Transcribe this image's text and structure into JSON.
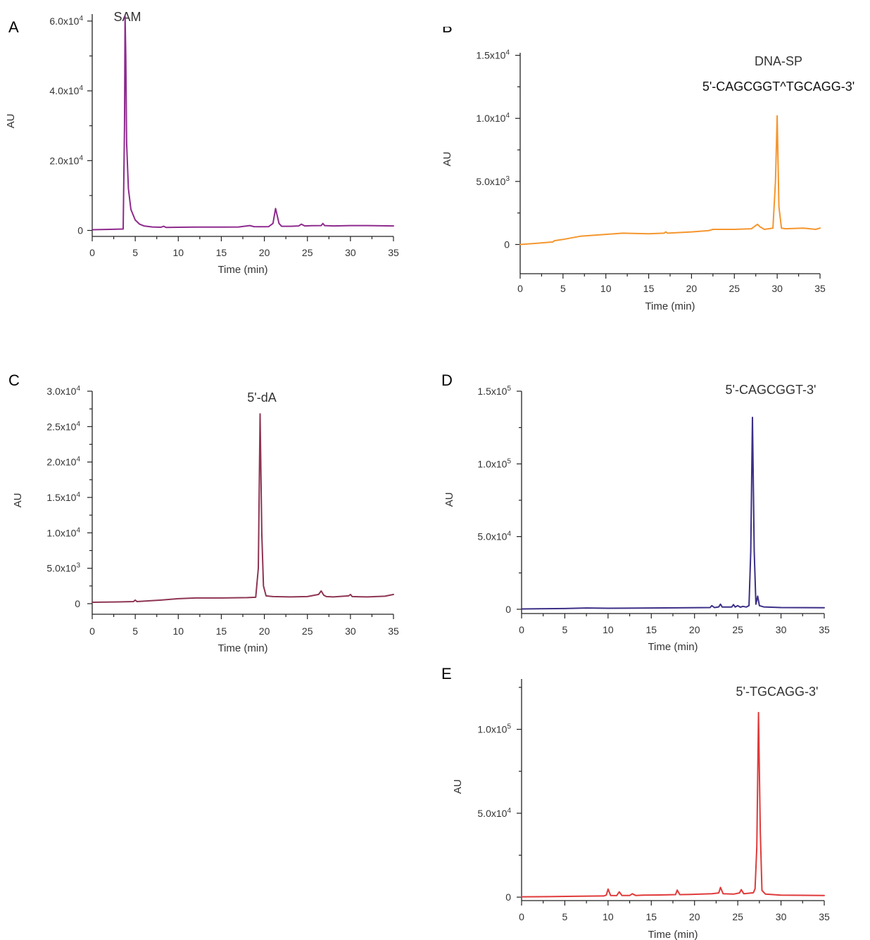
{
  "chart_data": [
    {
      "panel": "A",
      "type": "line",
      "annotations": [
        "SAM"
      ],
      "xlabel": "Time (min)",
      "ylabel": "AU",
      "xlim": [
        0,
        35
      ],
      "ylim": [
        -300,
        62000
      ],
      "x_ticks": [
        0,
        5,
        10,
        15,
        20,
        25,
        30,
        35
      ],
      "x_tick_labels": [
        "0",
        "5",
        "10",
        "15",
        "20",
        "25",
        "30",
        "35"
      ],
      "y_ticks": [
        0,
        20000,
        40000,
        60000
      ],
      "y_tick_labels": [
        {
          "mant": "",
          "exp": "",
          "text": "0"
        },
        {
          "mant": "2.0x10",
          "exp": "4",
          "text": ""
        },
        {
          "mant": "4.0x10",
          "exp": "4",
          "text": ""
        },
        {
          "mant": "6.0x10",
          "exp": "4",
          "text": ""
        }
      ],
      "color": "#8e2a8e",
      "series": [
        {
          "x": [
            0,
            2.0,
            3.6,
            3.75,
            3.82,
            3.9,
            4.0,
            4.2,
            4.5,
            5.0,
            5.5,
            6.0,
            7.0,
            8.0,
            8.3,
            8.6,
            10,
            12,
            15,
            17,
            18.3,
            18.8,
            19.5,
            20.5,
            21.0,
            21.3,
            21.7,
            22.0,
            23.0,
            24.0,
            24.3,
            24.7,
            25.5,
            26.6,
            26.8,
            27.0,
            28.0,
            30.0,
            32.0,
            35.0
          ],
          "y": [
            200,
            300,
            400,
            30000,
            61500,
            50000,
            25000,
            12000,
            6000,
            3000,
            1800,
            1300,
            1000,
            900,
            1200,
            850,
            900,
            950,
            950,
            1000,
            1400,
            1100,
            1050,
            1100,
            2000,
            6300,
            2000,
            1200,
            1200,
            1300,
            1800,
            1300,
            1350,
            1400,
            2000,
            1400,
            1300,
            1400,
            1400,
            1300
          ]
        }
      ]
    },
    {
      "panel": "B",
      "type": "line",
      "annotations": [
        "DNA-SP",
        "5'-CAGCGGT^TGCAGG-3'"
      ],
      "xlabel": "Time (min)",
      "ylabel": "AU",
      "xlim": [
        0,
        35
      ],
      "ylim": [
        -1200,
        15200
      ],
      "x_ticks": [
        0,
        5,
        10,
        15,
        20,
        25,
        30,
        35
      ],
      "x_tick_labels": [
        "0",
        "5",
        "10",
        "15",
        "20",
        "25",
        "30",
        "35"
      ],
      "y_ticks": [
        0,
        5000,
        10000,
        15000
      ],
      "y_tick_labels": [
        {
          "mant": "",
          "exp": "",
          "text": "0"
        },
        {
          "mant": "5.0x10",
          "exp": "3",
          "text": ""
        },
        {
          "mant": "1.0x10",
          "exp": "4",
          "text": ""
        },
        {
          "mant": "1.5x10",
          "exp": "4",
          "text": ""
        }
      ],
      "color": "#f5962e",
      "series": [
        {
          "x": [
            0,
            2,
            3.8,
            4.0,
            5,
            7,
            10,
            12,
            15,
            16.8,
            17.0,
            17.2,
            20,
            22,
            22.5,
            25,
            27,
            27.5,
            27.7,
            28.0,
            28.5,
            29.5,
            29.8,
            30.0,
            30.2,
            30.5,
            31,
            33,
            34.5,
            35
          ],
          "y": [
            0,
            100,
            200,
            300,
            400,
            650,
            800,
            900,
            850,
            900,
            1000,
            900,
            1000,
            1100,
            1200,
            1200,
            1250,
            1500,
            1600,
            1400,
            1200,
            1300,
            5000,
            10200,
            3000,
            1300,
            1250,
            1300,
            1200,
            1300
          ]
        }
      ]
    },
    {
      "panel": "C",
      "type": "line",
      "annotations": [
        "5'-dA"
      ],
      "xlabel": "Time (min)",
      "ylabel": "AU",
      "xlim": [
        0,
        35
      ],
      "ylim": [
        -300,
        30000
      ],
      "x_ticks": [
        0,
        5,
        10,
        15,
        20,
        25,
        30,
        35
      ],
      "x_tick_labels": [
        "0",
        "5",
        "10",
        "15",
        "20",
        "25",
        "30",
        "35"
      ],
      "y_ticks": [
        0,
        5000,
        10000,
        15000,
        20000,
        25000,
        30000
      ],
      "y_tick_labels": [
        {
          "mant": "",
          "exp": "",
          "text": "0"
        },
        {
          "mant": "5.0x10",
          "exp": "3",
          "text": ""
        },
        {
          "mant": "1.0x10",
          "exp": "4",
          "text": ""
        },
        {
          "mant": "1.5x10",
          "exp": "4",
          "text": ""
        },
        {
          "mant": "2.0x10",
          "exp": "4",
          "text": ""
        },
        {
          "mant": "2.5x10",
          "exp": "4",
          "text": ""
        },
        {
          "mant": "3.0x10",
          "exp": "4",
          "text": ""
        }
      ],
      "color": "#8e3552",
      "series": [
        {
          "x": [
            0,
            3,
            4.8,
            5.0,
            5.2,
            8,
            10,
            12,
            15,
            18,
            19.0,
            19.3,
            19.5,
            19.7,
            19.9,
            20.2,
            21,
            23,
            25,
            26.3,
            26.6,
            26.9,
            27.2,
            28,
            29.8,
            30.0,
            30.2,
            32,
            34,
            35
          ],
          "y": [
            200,
            250,
            300,
            500,
            300,
            500,
            700,
            800,
            800,
            850,
            900,
            5000,
            26800,
            10000,
            2500,
            1100,
            1000,
            950,
            1000,
            1300,
            1800,
            1200,
            1000,
            950,
            1100,
            1300,
            1000,
            950,
            1050,
            1300
          ]
        }
      ]
    },
    {
      "panel": "D",
      "type": "line",
      "annotations": [
        "5'-CAGCGGT-3'"
      ],
      "xlabel": "Time (min)",
      "ylabel": "AU",
      "xlim": [
        0,
        35
      ],
      "ylim": [
        -1000,
        150000
      ],
      "x_ticks": [
        0,
        5,
        10,
        15,
        20,
        25,
        30,
        35
      ],
      "x_tick_labels": [
        "0",
        "5",
        "10",
        "15",
        "20",
        "25",
        "30",
        "35"
      ],
      "y_ticks": [
        0,
        50000,
        100000,
        150000
      ],
      "y_tick_labels": [
        {
          "mant": "",
          "exp": "",
          "text": "0"
        },
        {
          "mant": "5.0x10",
          "exp": "4",
          "text": ""
        },
        {
          "mant": "1.0x10",
          "exp": "5",
          "text": ""
        },
        {
          "mant": "1.5x10",
          "exp": "5",
          "text": ""
        }
      ],
      "color": "#3b2f86",
      "series": [
        {
          "x": [
            0,
            5,
            7.5,
            10,
            15,
            18,
            21.8,
            22.0,
            22.3,
            22.8,
            23.0,
            23.2,
            23.5,
            24.3,
            24.5,
            24.7,
            25.0,
            25.3,
            25.6,
            26.0,
            26.3,
            26.5,
            26.7,
            26.9,
            27.1,
            27.3,
            27.5,
            28,
            30,
            35
          ],
          "y": [
            200,
            500,
            900,
            700,
            900,
            1000,
            1200,
            2500,
            1200,
            1600,
            3500,
            1500,
            1500,
            1500,
            3200,
            1500,
            2500,
            1400,
            2000,
            1500,
            2500,
            40000,
            132000,
            40000,
            3500,
            9000,
            2500,
            1600,
            1200,
            1100
          ]
        }
      ]
    },
    {
      "panel": "E",
      "type": "line",
      "annotations": [
        "5'-TGCAGG-3'"
      ],
      "xlabel": "Time (min)",
      "ylabel": "AU",
      "xlim": [
        0,
        35
      ],
      "ylim": [
        -800,
        130000
      ],
      "x_ticks": [
        0,
        5,
        10,
        15,
        20,
        25,
        30,
        35
      ],
      "x_tick_labels": [
        "0",
        "5",
        "10",
        "15",
        "20",
        "25",
        "30",
        "35"
      ],
      "y_ticks": [
        0,
        50000,
        100000
      ],
      "y_tick_labels": [
        {
          "mant": "",
          "exp": "",
          "text": "0"
        },
        {
          "mant": "5.0x10",
          "exp": "4",
          "text": ""
        },
        {
          "mant": "1.0x10",
          "exp": "5",
          "text": ""
        }
      ],
      "color": "#e03a3a",
      "series": [
        {
          "x": [
            0,
            3,
            6,
            9.5,
            9.8,
            10.0,
            10.3,
            11.0,
            11.3,
            11.6,
            12.5,
            12.8,
            13.2,
            14,
            16,
            17.8,
            18.0,
            18.3,
            19.5,
            22,
            22.8,
            23.0,
            23.3,
            24.5,
            25.2,
            25.4,
            25.7,
            26.8,
            27.0,
            27.2,
            27.4,
            27.6,
            27.8,
            28.2,
            30,
            35
          ],
          "y": [
            200,
            300,
            500,
            700,
            1200,
            4800,
            1000,
            900,
            3200,
            1000,
            1000,
            2000,
            1000,
            1200,
            1300,
            1500,
            4200,
            1500,
            1600,
            2000,
            2500,
            5800,
            2000,
            1800,
            2500,
            4500,
            2000,
            2600,
            5000,
            30000,
            110000,
            40000,
            4000,
            1800,
            1200,
            1000
          ]
        }
      ]
    }
  ]
}
